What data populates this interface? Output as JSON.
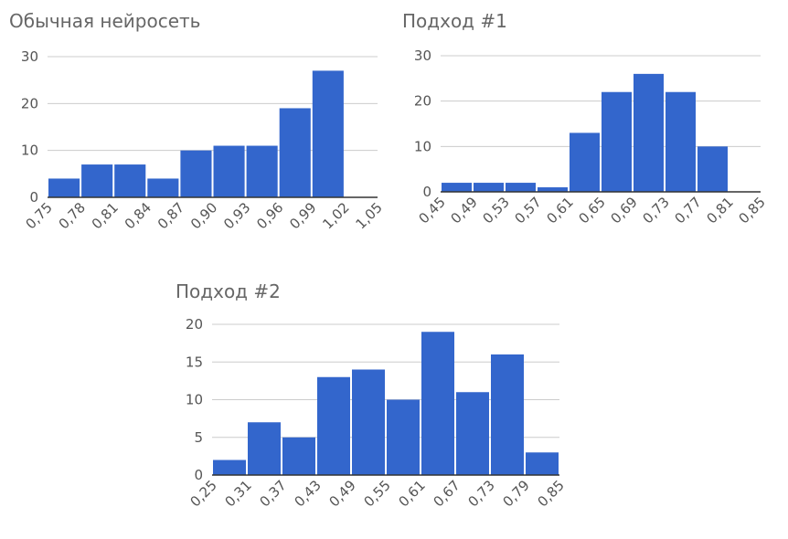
{
  "chart_data": [
    {
      "type": "histogram",
      "title": "Обычная нейросеть",
      "bins": [
        {
          "value": 0.75,
          "label": "0,75"
        },
        {
          "value": 0.78,
          "label": "0,78"
        },
        {
          "value": 0.81,
          "label": "0,81"
        },
        {
          "value": 0.84,
          "label": "0,84"
        },
        {
          "value": 0.87,
          "label": "0,87"
        },
        {
          "value": 0.9,
          "label": "0,90"
        },
        {
          "value": 0.93,
          "label": "0,93"
        },
        {
          "value": 0.96,
          "label": "0,96"
        },
        {
          "value": 0.99,
          "label": "0,99"
        },
        {
          "value": 1.02,
          "label": "1,02"
        },
        {
          "value": 1.05,
          "label": "1,05"
        }
      ],
      "counts": [
        4,
        7,
        7,
        4,
        10,
        11,
        11,
        19,
        27,
        0
      ],
      "color": "#3366cc",
      "ylim": [
        0,
        30
      ],
      "yticks": [
        0,
        10,
        20,
        30
      ],
      "grid": true
    },
    {
      "type": "histogram",
      "title": "Подход #1",
      "bins": [
        {
          "value": 0.45,
          "label": "0,45"
        },
        {
          "value": 0.49,
          "label": "0,49"
        },
        {
          "value": 0.53,
          "label": "0,53"
        },
        {
          "value": 0.57,
          "label": "0,57"
        },
        {
          "value": 0.61,
          "label": "0,61"
        },
        {
          "value": 0.65,
          "label": "0,65"
        },
        {
          "value": 0.69,
          "label": "0,69"
        },
        {
          "value": 0.73,
          "label": "0,73"
        },
        {
          "value": 0.77,
          "label": "0,77"
        },
        {
          "value": 0.81,
          "label": "0,81"
        },
        {
          "value": 0.85,
          "label": "0,85"
        }
      ],
      "counts": [
        2,
        2,
        2,
        1,
        13,
        22,
        26,
        22,
        10,
        0
      ],
      "color": "#3366cc",
      "ylim": [
        0,
        30
      ],
      "yticks": [
        0,
        10,
        20,
        30
      ],
      "grid": true
    },
    {
      "type": "histogram",
      "title": "Подход #2",
      "bins": [
        {
          "value": 0.25,
          "label": "0,25"
        },
        {
          "value": 0.31,
          "label": "0,31"
        },
        {
          "value": 0.37,
          "label": "0,37"
        },
        {
          "value": 0.43,
          "label": "0,43"
        },
        {
          "value": 0.49,
          "label": "0,49"
        },
        {
          "value": 0.55,
          "label": "0,55"
        },
        {
          "value": 0.61,
          "label": "0,61"
        },
        {
          "value": 0.67,
          "label": "0,67"
        },
        {
          "value": 0.73,
          "label": "0,73"
        },
        {
          "value": 0.79,
          "label": "0,79"
        },
        {
          "value": 0.85,
          "label": "0,85"
        }
      ],
      "counts": [
        2,
        7,
        5,
        13,
        14,
        10,
        19,
        11,
        16,
        3
      ],
      "color": "#3366cc",
      "ylim": [
        0,
        20
      ],
      "yticks": [
        0,
        5,
        10,
        15,
        20
      ],
      "grid": true
    }
  ]
}
